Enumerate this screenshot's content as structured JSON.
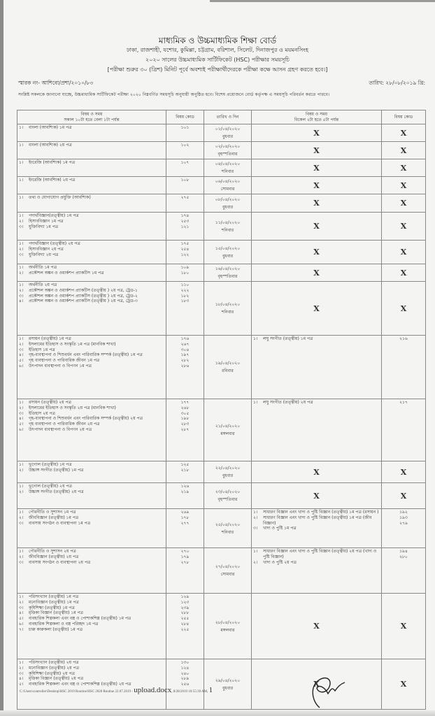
{
  "header": {
    "board": "মাধ্যমিক ও উচ্চমাধ্যমিক শিক্ষা বোর্ড",
    "cities": "ঢাকা, রাজশাহী, যশোর, কুমিল্লা, চট্টগ্রাম, বরিশাল, সিলেট, দিনাজপুর ও ময়মনসিংহ",
    "title": "২০২০ সালের উচ্চমাধ্যমিক সার্টিফিকেট (HSC) পরীক্ষার সময়সূচি",
    "instruction": "[পরীক্ষা শুরুর ৩০ (ত্রিশ) মিনিট পূর্বে অবশ্যই পরীক্ষার্থীদেরকে পরীক্ষা কক্ষে আসন গ্রহণ করতে হবে।]",
    "memo": "স্মারক নং- আশিবো/প্রশা/২০১০/৮৩",
    "date": "তারিখ: ২৮/০৮/২০১৯ খ্রি:",
    "notice": "সংশ্লিষ্ট সকলকে জানানো যাচ্ছে, উচ্চমাধ্যমিক সার্টিফিকেট পরীক্ষা ২০২০ নিম্নবর্ণিত সময়সূচি অনুযায়ী অনুষ্ঠিত হবে। বিশেষ প্রয়োজনে বোর্ড কর্তৃপক্ষ এ সময়সূচি পরিবর্তন করতে পারবে।"
  },
  "table": {
    "headers": {
      "morning_1": "বিষয় ও সময়",
      "morning_2": "সকাল ১০টা হতে বেলা ১টা পর্যন্ত",
      "code": "বিষয় কোড",
      "date": "তারিখ ও দিন",
      "afternoon_1": "বিষয় ও সময়",
      "afternoon_2": "বিকেল ২টা হতে ৫টা পর্যন্ত",
      "code2": "বিষয় কোড"
    },
    "none_mark": "X",
    "rows": [
      {
        "m": [
          [
            "১।",
            "বাংলা (আবশ্যিক) ১ম পত্র",
            "১০১"
          ]
        ],
        "date": "০১/০৪/২০২০",
        "day": "বুধবার",
        "a": null
      },
      {
        "m": [
          [
            "১।",
            "বাংলা (আবশ্যিক) ২য় পত্র",
            "১০২"
          ]
        ],
        "date": "০২/০৪/২০২০",
        "day": "বৃহস্পতিবার",
        "a": null
      },
      {
        "m": [
          [
            "১।",
            "ইংরেজি (আবশ্যিক) ১ম পত্র",
            "১০৭"
          ]
        ],
        "date": "০৪/০৪/২০২০",
        "day": "শনিবার",
        "a": null
      },
      {
        "m": [
          [
            "১।",
            "ইংরেজি (আবশ্যিক) ২য় পত্র",
            "১০৮"
          ]
        ],
        "date": "০৬/০৪/২০২০",
        "day": "সোমবার",
        "a": null
      },
      {
        "m": [
          [
            "১।",
            "তথ্য ও যোগাযোগ প্রযুক্তি (আবশ্যিক)",
            "২৭৫"
          ]
        ],
        "date": "০৮/০৪/২০২০",
        "day": "বুধবার",
        "a": null
      },
      {
        "m": [
          [
            "১।",
            "পদার্থবিজ্ঞান(তত্ত্বীয়) ১ম পত্র",
            "১৭৪"
          ],
          [
            "২।",
            "হিসাববিজ্ঞান ১ম পত্র",
            "২৫৩"
          ],
          [
            "৩।",
            "যুক্তিবিদ্যা ১ম পত্র",
            "১২১"
          ]
        ],
        "date": "১১/০৪/২০২০",
        "day": "শনিবার",
        "a": null
      },
      {
        "m": [
          [
            "১।",
            "পদার্থবিজ্ঞান (তত্ত্বীয়) ২য় পত্র",
            "১৭৫"
          ],
          [
            "২।",
            "হিসাববিজ্ঞান ২য় পত্র",
            "২৫৪"
          ],
          [
            "৩।",
            "যুক্তিবিদ্যা ২য় পত্র",
            "১২২"
          ]
        ],
        "date": "১৫/০৪/২০২০",
        "day": "বুধবার",
        "a": null
      },
      {
        "m": [
          [
            "১।",
            "অর্থনীতি ১ম পত্র",
            "১০৯"
          ],
          [
            "২।",
            "প্রকৌশল অঙ্কন ও ওয়ার্কশপ প্র্যাকটিস ১ম পত্র",
            "১৮০"
          ]
        ],
        "date": "১৬/০৪/২০২০",
        "day": "বৃহস্পতিবার",
        "a": null
      },
      {
        "m": [
          [
            "১।",
            "অর্থনীতি ২য় পত্র",
            "১১০"
          ],
          [
            "২।",
            "প্রকৌশল অঙ্কন ও ওয়ার্কশপ প্র্যাকটিস (তত্ত্বীয় ) ২য় পত্র, ট্রেড-১",
            "২২২"
          ],
          [
            "৩।",
            "প্রকৌশল অঙ্কন ও ওয়ার্কশপ প্র্যাকটিস (তত্ত্বীয় ) ২য় পত্র, ট্রেড-২",
            "১৮২"
          ],
          [
            "৪।",
            "প্রকৌশল অঙ্কন ও ওয়ার্কশপ প্র্যাকটিস (তত্ত্বীয় ) ২য় পত্র, ট্রেড-৩",
            "১৮৩"
          ]
        ],
        "date": "১৮/০৪/২০২০",
        "day": "শনিবার",
        "a": null
      },
      {
        "m": [
          [
            "১।",
            "রসায়ন (তত্ত্বীয়) ১ম পত্র",
            "১৭৬"
          ],
          [
            "২।",
            "ইসলামের ইতিহাস ও সংস্কৃতি ১ম পত্র (মানবিক শাখা)",
            "২৬৭"
          ],
          [
            "৩।",
            "ইতিহাস ১ম পত্র",
            "৩০৪"
          ],
          [
            "৪।",
            "গৃহ-ব্যবস্থাপনা ও শিশুবর্ধন এবং পারিবারিক সম্পর্ক (তত্ত্বীয়) ১ম পত্র",
            "১৯৭"
          ],
          [
            "৫।",
            "গৃহ ব্যবস্থাপনা ও পারিবারিক জীবন ১ম পত্র",
            "২৮২"
          ],
          [
            "৬।",
            "উৎপাদন ব্যবস্থাপনা ও বিপণন ১ম পত্র",
            "২৮৬"
          ]
        ],
        "date": "১৯/০৪/২০২০",
        "day": "রবিবার",
        "a": [
          [
            "১।",
            "লঘু সংগীত (তত্ত্বীয়) ১ম পত্র",
            "২১৬"
          ]
        ]
      },
      {
        "m": [
          [
            "১।",
            "রসায়ন (তত্ত্বীয়) ২য় পত্র",
            "১৭৭"
          ],
          [
            "২।",
            "ইসলামের ইতিহাস ও সংস্কৃতি ২য় পত্র (মানবিক শাখা)",
            "২৬৮"
          ],
          [
            "৩।",
            "ইতিহাস ২য় পত্র",
            "৩০৫"
          ],
          [
            "৪।",
            "গৃহ-ব্যবস্থাপনা ও শিশুবর্ধন এবং পারিবারিক সম্পর্ক (তত্ত্বীয়) ২য় পত্র",
            "১৯৮"
          ],
          [
            "৫।",
            "গৃহ ব্যবস্থাপনা ও পারিবারিক জীবন ২য় পত্র",
            "২৮৩"
          ],
          [
            "৬।",
            "উৎপাদন ব্যবস্থাপনা ও বিপণন ২য় পত্র",
            "২৮৭"
          ]
        ],
        "date": "২১/০৪/২০২০",
        "day": "মঙ্গলবার",
        "a": [
          [
            "১।",
            "লঘু সংগীত (তত্ত্বীয়) ২য় পত্র",
            "২১৭"
          ]
        ]
      },
      {
        "m": [
          [
            "১।",
            "ভূগোল (তত্ত্বীয়) ১ম পত্র",
            "১২৫"
          ],
          [
            "২।",
            "উচ্চাঙ্গ সংগীত (তত্ত্বীয়) ১ম পত্র",
            "২১৮"
          ]
        ],
        "date": "২২/০৪/২০২০",
        "day": "বুধবার",
        "a": null
      },
      {
        "m": [
          [
            "১।",
            "ভূগোল (তত্ত্বীয়) ২য় পত্র",
            "১২৬"
          ],
          [
            "২।",
            "উচ্চাঙ্গ সংগীত (তত্ত্বীয়) ২য় পত্র",
            "২১৯"
          ]
        ],
        "date": "২৩/০৪/২০২০",
        "day": "বৃহস্পতিবার",
        "a": null
      },
      {
        "m": [
          [
            "১।",
            "পৌরনীতি ও সুশাসন ১ম পত্র",
            "২৬৯"
          ],
          [
            "২।",
            "জীববিজ্ঞান (তত্ত্বীয়) ১ম পত্র",
            "১৭৮"
          ],
          [
            "৩।",
            "ব্যবসায় সংগঠন ও ব্যবস্থাপনা ১ম পত্র",
            "২৭৭"
          ]
        ],
        "date": "২৫/০৪/২০২০",
        "day": "শনিবার",
        "a": [
          [
            "১।",
            "সাধারণ বিজ্ঞান এবং খাদ্য ও পুষ্টি বিজ্ঞান (তত্ত্বীয়) ১ম পত্র (রসায়ন )",
            "১৯২"
          ],
          [
            "২।",
            "সাধারণ বিজ্ঞান এবং খাদ্য ও পুষ্টি বিজ্ঞান (তত্ত্বীয়) ১ম পত্র (জীব বিজ্ঞান)",
            "১৯৩"
          ],
          [
            "৩।",
            "খাদ্য ও পুষ্টি ১ম পত্র",
            "২৭৯"
          ]
        ]
      },
      {
        "m": [
          [
            "১।",
            "পৌরনীতি ও সুশাসন ২য় পত্র",
            "২৭০"
          ],
          [
            "২।",
            "জীববিজ্ঞান (তত্ত্বীয়) ২য় পত্র",
            "১৭৯"
          ],
          [
            "৩।",
            "ব্যবসায় সংগঠন ও ব্যবস্থাপনা ২য় পত্র",
            "২৭৮"
          ]
        ],
        "date": "২৭/০৪/২০২০",
        "day": "সোমবার",
        "a": [
          [
            "১।",
            "সাধারণ বিজ্ঞান এবং খাদ্য ও পুষ্টি বিজ্ঞান (তত্ত্বীয়) ২য় পত্র (খাদ্য ও পুষ্টি বিজ্ঞান)",
            "১৯৪"
          ],
          [
            "২।",
            "খাদ্য ও পুষ্টি ২য় পত্র",
            "২৮০"
          ]
        ]
      },
      {
        "m": [
          [
            "১।",
            "পরিসংখ্যান (তত্ত্বীয়) ১ম পত্র",
            "১২৯"
          ],
          [
            "২।",
            "মনোবিজ্ঞান (তত্ত্বীয়) ১ম পত্র",
            "১২৩"
          ],
          [
            "৩।",
            "কৃষিশিক্ষা (তত্ত্বীয়) ১ম পত্র",
            "২৩৯"
          ],
          [
            "৪।",
            "মৃত্তিকা বিজ্ঞান (তত্ত্বীয়) ১ম পত্র",
            "২৮৮"
          ],
          [
            "৫।",
            "ব্যবহারিক শিল্পকলা এবং বস্ত্র ও পোশাকশিল্প (তত্ত্বীয়) ১ম পত্র",
            "২৫৫"
          ],
          [
            "৬।",
            "ব্যবহারিক শিল্পকলা ও বস্ত্র পরিচ্ছদ ১ম পত্র",
            "২৮৪"
          ],
          [
            "৭।",
            "চারু কারুকলা (তত্ত্বীয়) ১ম পত্র",
            "২২৫"
          ]
        ],
        "date": "২৮/০৪/২০২০",
        "day": "মঙ্গলবার",
        "a": null
      },
      {
        "m": [
          [
            "১।",
            "পরিসংখ্যান (তত্ত্বীয়) ২য় পত্র",
            "১৩০"
          ],
          [
            "২।",
            "মনোবিজ্ঞান (তত্ত্বীয়) ২য় পত্র",
            "১২৪"
          ],
          [
            "৩।",
            "কৃষিশিক্ষা (তত্ত্বীয়) ২য় পত্র",
            "২৪০"
          ],
          [
            "৪।",
            "মৃত্তিকা বিজ্ঞান (তত্ত্বীয়) ২য় পত্র",
            "২৮৯"
          ],
          [
            "৫।",
            "ব্যবহারিক শিল্পকলা এবং বস্ত্র ও পোশাকশিল্প (তত্ত্বীয়) ২য় পত্র",
            "২৫৬"
          ]
        ],
        "date": "২৯/০৪/২০২০",
        "day": "বুধবার",
        "a": null
      }
    ]
  },
  "footer": {
    "path": "C:\\Users\\controller\\Desktop\\HSC 2019 Routine\\HSC 2020 Routine 22.07.2019 - ",
    "file": "upload.docx",
    "stamp": ", 8/28/2019 10:55:39 AM, ",
    "page": "1"
  }
}
